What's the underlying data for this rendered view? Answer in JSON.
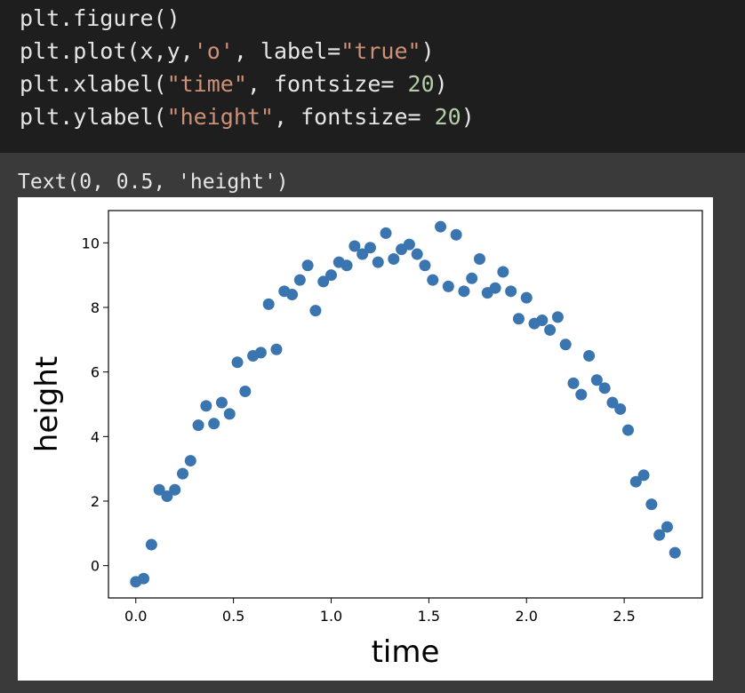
{
  "code": {
    "lines": [
      [
        {
          "t": "plt.figure()",
          "c": ""
        }
      ],
      [
        {
          "t": "plt.plot(x,y,",
          "c": ""
        },
        {
          "t": "'o'",
          "c": "str"
        },
        {
          "t": ", label=",
          "c": ""
        },
        {
          "t": "\"true\"",
          "c": "str"
        },
        {
          "t": ")",
          "c": ""
        }
      ],
      [
        {
          "t": "plt.xlabel(",
          "c": ""
        },
        {
          "t": "\"time\"",
          "c": "str"
        },
        {
          "t": ", fontsize= ",
          "c": ""
        },
        {
          "t": "20",
          "c": "num"
        },
        {
          "t": ")",
          "c": ""
        }
      ],
      [
        {
          "t": "plt.ylabel(",
          "c": ""
        },
        {
          "t": "\"height\"",
          "c": "str"
        },
        {
          "t": ", fontsize= ",
          "c": ""
        },
        {
          "t": "20",
          "c": "num"
        },
        {
          "t": ")",
          "c": ""
        }
      ]
    ]
  },
  "output": {
    "text": "Text(0, 0.5, 'height')"
  },
  "chart_data": {
    "type": "scatter",
    "title": "",
    "xlabel": "time",
    "ylabel": "height",
    "xlim": [
      -0.14,
      2.9
    ],
    "ylim": [
      -1.0,
      11.0
    ],
    "xticks": [
      0.0,
      0.5,
      1.0,
      1.5,
      2.0,
      2.5
    ],
    "xtick_labels": [
      "0.0",
      "0.5",
      "1.0",
      "1.5",
      "2.0",
      "2.5"
    ],
    "yticks": [
      0,
      2,
      4,
      6,
      8,
      10
    ],
    "ytick_labels": [
      "0",
      "2",
      "4",
      "6",
      "8",
      "10"
    ],
    "grid": false,
    "marker_color": "#3a75b0",
    "series": [
      {
        "x": [
          0.0,
          0.04,
          0.08,
          0.12,
          0.16,
          0.2,
          0.24,
          0.28,
          0.32,
          0.36,
          0.4,
          0.44,
          0.48,
          0.52,
          0.56,
          0.6,
          0.64,
          0.68,
          0.72,
          0.76,
          0.8,
          0.84,
          0.88,
          0.92,
          0.96,
          1.0,
          1.04,
          1.08,
          1.12,
          1.16,
          1.2,
          1.24,
          1.28,
          1.32,
          1.36,
          1.4,
          1.44,
          1.48,
          1.52,
          1.56,
          1.6,
          1.64,
          1.68,
          1.72,
          1.76,
          1.8,
          1.84,
          1.88,
          1.92,
          1.96,
          2.0,
          2.04,
          2.08,
          2.12,
          2.16,
          2.2,
          2.24,
          2.28,
          2.32,
          2.36,
          2.4,
          2.44,
          2.48,
          2.52,
          2.56,
          2.6,
          2.64,
          2.68,
          2.72,
          2.76
        ],
        "y": [
          -0.5,
          -0.4,
          0.65,
          2.35,
          2.15,
          2.35,
          2.85,
          3.25,
          4.35,
          4.95,
          4.4,
          5.05,
          4.7,
          6.3,
          5.4,
          6.5,
          6.6,
          8.1,
          6.7,
          8.5,
          8.4,
          8.85,
          9.3,
          7.9,
          8.8,
          9.0,
          9.4,
          9.3,
          9.9,
          9.65,
          9.85,
          9.4,
          10.3,
          9.5,
          9.8,
          9.95,
          9.65,
          9.3,
          8.85,
          10.5,
          8.65,
          10.25,
          8.5,
          8.9,
          9.5,
          8.45,
          8.6,
          9.1,
          8.5,
          7.65,
          8.3,
          7.5,
          7.6,
          7.3,
          7.7,
          6.85,
          5.65,
          5.3,
          6.5,
          5.75,
          5.5,
          5.05,
          4.85,
          4.2,
          2.6,
          2.8,
          1.9,
          0.95,
          1.2,
          0.4
        ]
      }
    ]
  }
}
